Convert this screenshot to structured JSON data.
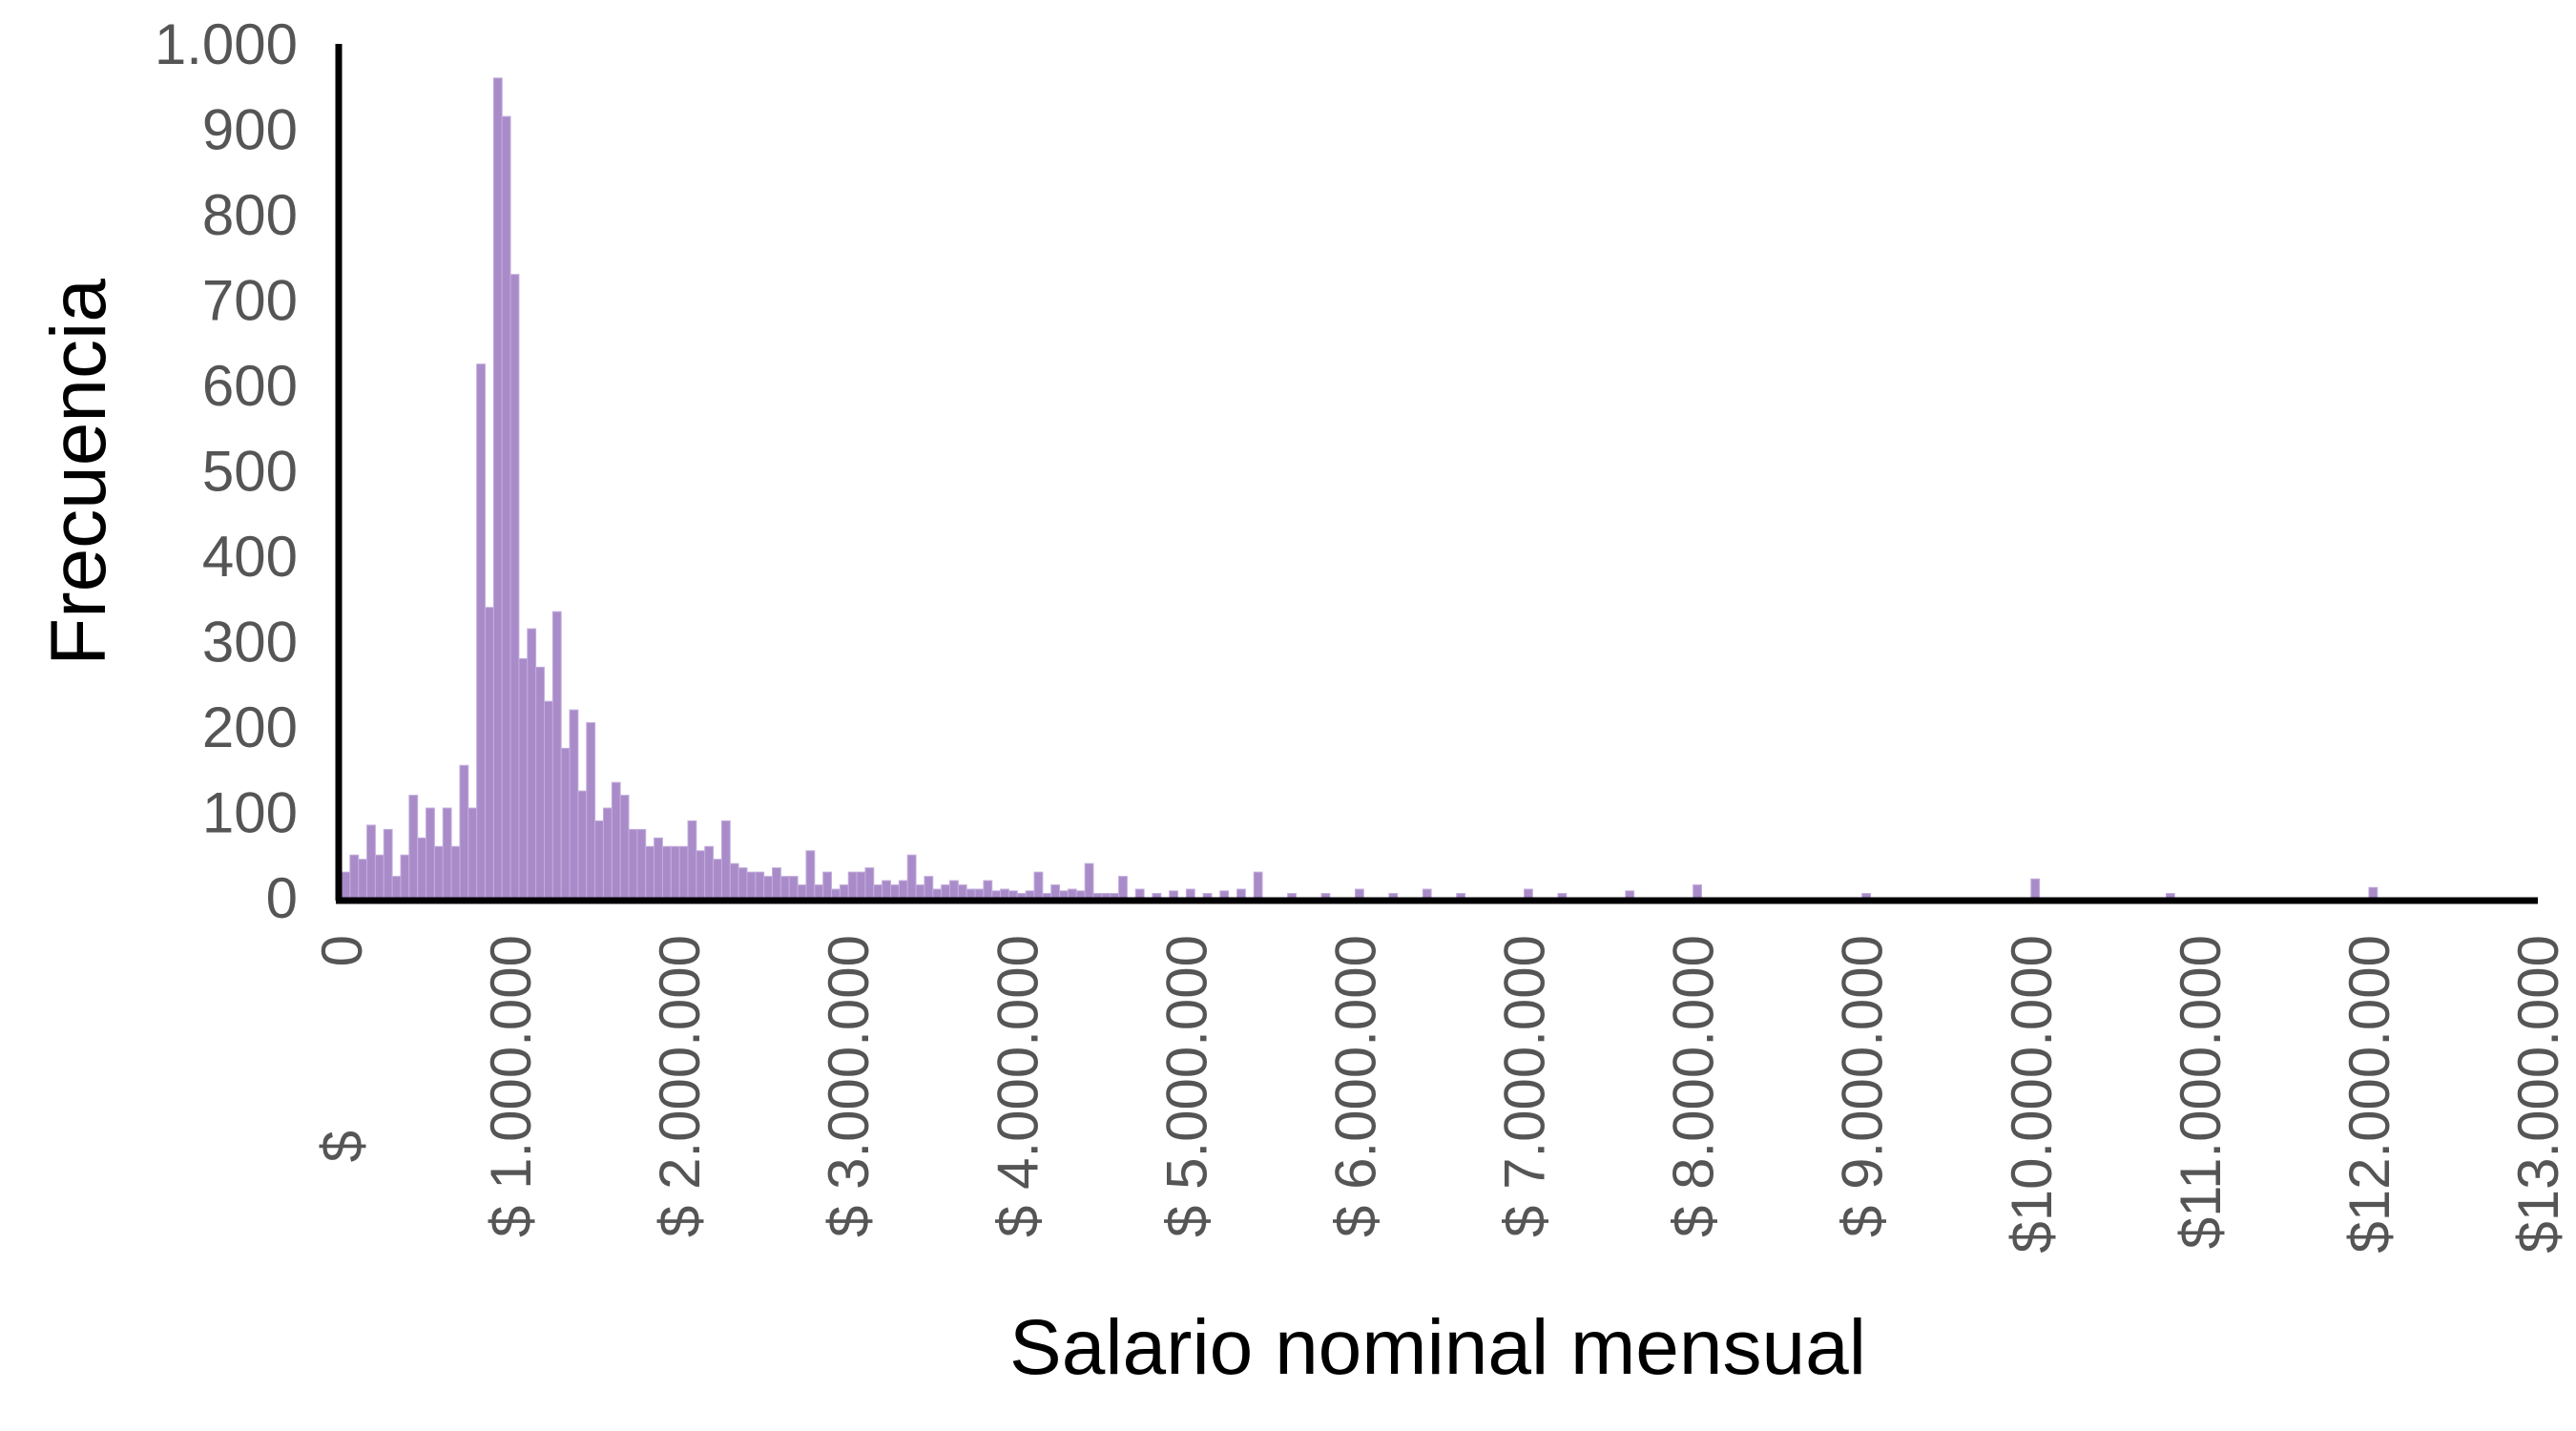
{
  "chart_data": {
    "type": "bar",
    "title": "",
    "xlabel": "Salario nominal mensual",
    "ylabel": "Frecuencia",
    "ylim": [
      0,
      1000
    ],
    "xlim": [
      0,
      13000000
    ],
    "grid": false,
    "legend": "none",
    "bar_color": "#a98bc9",
    "bar_edge_color": "#c3aedc",
    "axis_color": "#000000",
    "tick_color": "#555555",
    "bin_width": 50000,
    "yticks": [
      {
        "value": 0,
        "label": "0"
      },
      {
        "value": 100,
        "label": "100"
      },
      {
        "value": 200,
        "label": "200"
      },
      {
        "value": 300,
        "label": "300"
      },
      {
        "value": 400,
        "label": "400"
      },
      {
        "value": 500,
        "label": "500"
      },
      {
        "value": 600,
        "label": "600"
      },
      {
        "value": 700,
        "label": "700"
      },
      {
        "value": 800,
        "label": "800"
      },
      {
        "value": 900,
        "label": "900"
      },
      {
        "value": 1000,
        "label": "1.000"
      }
    ],
    "xticks": [
      {
        "value": 0,
        "line1": "$",
        "line2": "0"
      },
      {
        "value": 1000000,
        "label": "$ 1.000.000"
      },
      {
        "value": 2000000,
        "label": "$ 2.000.000"
      },
      {
        "value": 3000000,
        "label": "$ 3.000.000"
      },
      {
        "value": 4000000,
        "label": "$ 4.000.000"
      },
      {
        "value": 5000000,
        "label": "$ 5.000.000"
      },
      {
        "value": 6000000,
        "label": "$ 6.000.000"
      },
      {
        "value": 7000000,
        "label": "$ 7.000.000"
      },
      {
        "value": 8000000,
        "label": "$ 8.000.000"
      },
      {
        "value": 9000000,
        "label": "$ 9.000.000"
      },
      {
        "value": 10000000,
        "label": "$10.000.000"
      },
      {
        "value": 11000000,
        "label": "$11.000.000"
      },
      {
        "value": 12000000,
        "label": "$12.000.000"
      },
      {
        "value": 13000000,
        "label": "$13.000.000"
      }
    ],
    "bins": [
      {
        "x": 0,
        "y": 30
      },
      {
        "x": 50000,
        "y": 50
      },
      {
        "x": 100000,
        "y": 45
      },
      {
        "x": 150000,
        "y": 85
      },
      {
        "x": 200000,
        "y": 50
      },
      {
        "x": 250000,
        "y": 80
      },
      {
        "x": 300000,
        "y": 25
      },
      {
        "x": 350000,
        "y": 50
      },
      {
        "x": 400000,
        "y": 120
      },
      {
        "x": 450000,
        "y": 70
      },
      {
        "x": 500000,
        "y": 105
      },
      {
        "x": 550000,
        "y": 60
      },
      {
        "x": 600000,
        "y": 105
      },
      {
        "x": 650000,
        "y": 60
      },
      {
        "x": 700000,
        "y": 155
      },
      {
        "x": 750000,
        "y": 105
      },
      {
        "x": 800000,
        "y": 625
      },
      {
        "x": 850000,
        "y": 340
      },
      {
        "x": 900000,
        "y": 960
      },
      {
        "x": 950000,
        "y": 915
      },
      {
        "x": 1000000,
        "y": 730
      },
      {
        "x": 1050000,
        "y": 280
      },
      {
        "x": 1100000,
        "y": 315
      },
      {
        "x": 1150000,
        "y": 270
      },
      {
        "x": 1200000,
        "y": 230
      },
      {
        "x": 1250000,
        "y": 335
      },
      {
        "x": 1300000,
        "y": 175
      },
      {
        "x": 1350000,
        "y": 220
      },
      {
        "x": 1400000,
        "y": 125
      },
      {
        "x": 1450000,
        "y": 205
      },
      {
        "x": 1500000,
        "y": 90
      },
      {
        "x": 1550000,
        "y": 105
      },
      {
        "x": 1600000,
        "y": 135
      },
      {
        "x": 1650000,
        "y": 120
      },
      {
        "x": 1700000,
        "y": 80
      },
      {
        "x": 1750000,
        "y": 80
      },
      {
        "x": 1800000,
        "y": 60
      },
      {
        "x": 1850000,
        "y": 70
      },
      {
        "x": 1900000,
        "y": 60
      },
      {
        "x": 1950000,
        "y": 60
      },
      {
        "x": 2000000,
        "y": 60
      },
      {
        "x": 2050000,
        "y": 90
      },
      {
        "x": 2100000,
        "y": 55
      },
      {
        "x": 2150000,
        "y": 60
      },
      {
        "x": 2200000,
        "y": 45
      },
      {
        "x": 2250000,
        "y": 90
      },
      {
        "x": 2300000,
        "y": 40
      },
      {
        "x": 2350000,
        "y": 35
      },
      {
        "x": 2400000,
        "y": 30
      },
      {
        "x": 2450000,
        "y": 30
      },
      {
        "x": 2500000,
        "y": 25
      },
      {
        "x": 2550000,
        "y": 35
      },
      {
        "x": 2600000,
        "y": 25
      },
      {
        "x": 2650000,
        "y": 25
      },
      {
        "x": 2700000,
        "y": 15
      },
      {
        "x": 2750000,
        "y": 55
      },
      {
        "x": 2800000,
        "y": 15
      },
      {
        "x": 2850000,
        "y": 30
      },
      {
        "x": 2900000,
        "y": 10
      },
      {
        "x": 2950000,
        "y": 15
      },
      {
        "x": 3000000,
        "y": 30
      },
      {
        "x": 3050000,
        "y": 30
      },
      {
        "x": 3100000,
        "y": 35
      },
      {
        "x": 3150000,
        "y": 15
      },
      {
        "x": 3200000,
        "y": 20
      },
      {
        "x": 3250000,
        "y": 15
      },
      {
        "x": 3300000,
        "y": 20
      },
      {
        "x": 3350000,
        "y": 50
      },
      {
        "x": 3400000,
        "y": 15
      },
      {
        "x": 3450000,
        "y": 25
      },
      {
        "x": 3500000,
        "y": 10
      },
      {
        "x": 3550000,
        "y": 15
      },
      {
        "x": 3600000,
        "y": 20
      },
      {
        "x": 3650000,
        "y": 15
      },
      {
        "x": 3700000,
        "y": 10
      },
      {
        "x": 3750000,
        "y": 10
      },
      {
        "x": 3800000,
        "y": 20
      },
      {
        "x": 3850000,
        "y": 8
      },
      {
        "x": 3900000,
        "y": 10
      },
      {
        "x": 3950000,
        "y": 8
      },
      {
        "x": 4000000,
        "y": 5
      },
      {
        "x": 4050000,
        "y": 8
      },
      {
        "x": 4100000,
        "y": 30
      },
      {
        "x": 4150000,
        "y": 5
      },
      {
        "x": 4200000,
        "y": 15
      },
      {
        "x": 4250000,
        "y": 8
      },
      {
        "x": 4300000,
        "y": 10
      },
      {
        "x": 4350000,
        "y": 8
      },
      {
        "x": 4400000,
        "y": 40
      },
      {
        "x": 4450000,
        "y": 5
      },
      {
        "x": 4500000,
        "y": 5
      },
      {
        "x": 4550000,
        "y": 5
      },
      {
        "x": 4600000,
        "y": 25
      },
      {
        "x": 4700000,
        "y": 10
      },
      {
        "x": 4800000,
        "y": 5
      },
      {
        "x": 4900000,
        "y": 8
      },
      {
        "x": 5000000,
        "y": 10
      },
      {
        "x": 5100000,
        "y": 5
      },
      {
        "x": 5200000,
        "y": 8
      },
      {
        "x": 5300000,
        "y": 10
      },
      {
        "x": 5400000,
        "y": 30
      },
      {
        "x": 5600000,
        "y": 5
      },
      {
        "x": 5800000,
        "y": 5
      },
      {
        "x": 6000000,
        "y": 10
      },
      {
        "x": 6200000,
        "y": 5
      },
      {
        "x": 6400000,
        "y": 10
      },
      {
        "x": 6600000,
        "y": 5
      },
      {
        "x": 7000000,
        "y": 10
      },
      {
        "x": 7200000,
        "y": 5
      },
      {
        "x": 7600000,
        "y": 8
      },
      {
        "x": 8000000,
        "y": 15
      },
      {
        "x": 9000000,
        "y": 5
      },
      {
        "x": 10000000,
        "y": 22
      },
      {
        "x": 10800000,
        "y": 5
      },
      {
        "x": 12000000,
        "y": 12
      }
    ]
  }
}
